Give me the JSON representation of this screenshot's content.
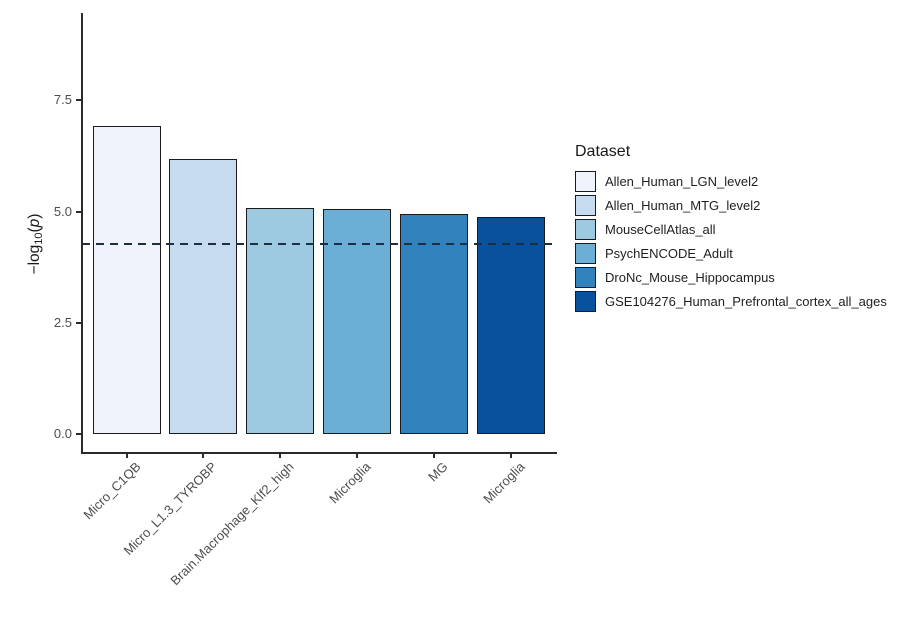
{
  "chart_data": {
    "type": "bar",
    "title": "",
    "xlabel": "",
    "ylabel": "-log10(p)",
    "ylabel_parts": {
      "prefix": "−log",
      "sub": "10",
      "open_paren": "(",
      "p_italic": "p",
      "close_paren": ")"
    },
    "y_axis": {
      "ticks": [
        {
          "label": "0.0",
          "value": 0.0
        },
        {
          "label": "2.5",
          "value": 2.5
        },
        {
          "label": "5.0",
          "value": 5.0
        },
        {
          "label": "7.5",
          "value": 7.5
        }
      ],
      "range": [
        -0.45,
        9.45
      ],
      "grid": false
    },
    "bars": [
      {
        "category": "Micro_C1QB",
        "dataset": "Allen_Human_LGN_level2",
        "value": 6.93,
        "color": "#EFF3FB"
      },
      {
        "category": "Micro_L1.3_TYROBP",
        "dataset": "Allen_Human_MTG_level2",
        "value": 6.19,
        "color": "#C6DBEF"
      },
      {
        "category": "Brain.Macrophage_Klf2_high",
        "dataset": "MouseCellAtlas_all",
        "value": 5.08,
        "color": "#9ECAE1"
      },
      {
        "category": "Microglia",
        "dataset": "PsychENCODE_Adult",
        "value": 5.06,
        "color": "#6BAED6"
      },
      {
        "category": "MG",
        "dataset": "DroNc_Mouse_Hippocampus",
        "value": 4.95,
        "color": "#3182BD"
      },
      {
        "category": "Microglia",
        "dataset": "GSE104276_Human_Prefrontal_cortex_all_ages",
        "value": 4.88,
        "color": "#08519C"
      }
    ],
    "threshold_line": {
      "value": 4.27,
      "style": "dashed",
      "color": "#1C2E42"
    },
    "legend": {
      "title": "Dataset",
      "position": "right",
      "entries": [
        {
          "label": "Allen_Human_LGN_level2",
          "color": "#EFF3FB"
        },
        {
          "label": "Allen_Human_MTG_level2",
          "color": "#C6DBEF"
        },
        {
          "label": "MouseCellAtlas_all",
          "color": "#9ECAE1"
        },
        {
          "label": "PsychENCODE_Adult",
          "color": "#6BAED6"
        },
        {
          "label": "DroNc_Mouse_Hippocampus",
          "color": "#3182BD"
        },
        {
          "label": "GSE104276_Human_Prefrontal_cortex_all_ages",
          "color": "#08519C"
        }
      ]
    },
    "styles": {
      "bar_border": "#1A1A1A",
      "axis_line": "#2B2B2B",
      "tick_label_color": "#4D4D4D",
      "x_label_angle": 45
    }
  }
}
